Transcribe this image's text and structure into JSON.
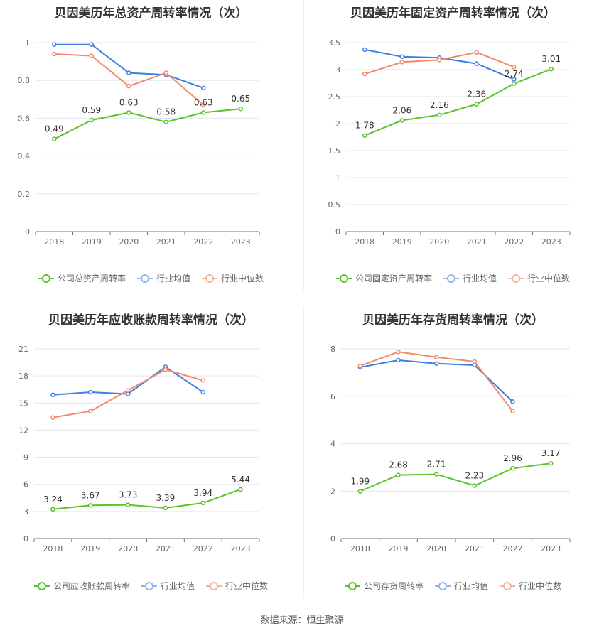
{
  "source": "数据来源：恒生聚源",
  "colors": {
    "company": "#5cc42a",
    "avg": "#3d7fe0",
    "median": "#f3896a"
  },
  "chart_data": [
    {
      "type": "line",
      "title": "贝因美历年总资产周转率情况（次）",
      "categories": [
        "2018",
        "2019",
        "2020",
        "2021",
        "2022",
        "2023"
      ],
      "ylim": [
        0,
        1
      ],
      "yticks": [
        0,
        0.2,
        0.4,
        0.6,
        0.8,
        1
      ],
      "ytick_labels": [
        "0",
        "0.2",
        "0.4",
        "0.6",
        "0.8",
        "1"
      ],
      "legend_position": "bottom",
      "series": [
        {
          "name": "公司总资产周转率",
          "values": [
            0.49,
            0.59,
            0.63,
            0.58,
            0.63,
            0.65
          ],
          "labels": [
            "0.49",
            "0.59",
            "0.63",
            "0.58",
            "0.63",
            "0.65"
          ]
        },
        {
          "name": "行业均值",
          "values": [
            0.99,
            0.99,
            0.84,
            0.83,
            0.76,
            null
          ]
        },
        {
          "name": "行业中位数",
          "values": [
            0.94,
            0.93,
            0.77,
            0.84,
            0.67,
            null
          ]
        }
      ]
    },
    {
      "type": "line",
      "title": "贝因美历年固定资产周转率情况（次）",
      "categories": [
        "2018",
        "2019",
        "2020",
        "2021",
        "2022",
        "2023"
      ],
      "ylim": [
        0,
        3.5
      ],
      "yticks": [
        0,
        0.5,
        1,
        1.5,
        2,
        2.5,
        3,
        3.5
      ],
      "ytick_labels": [
        "0",
        "0.5",
        "1",
        "1.5",
        "2",
        "2.5",
        "3",
        "3.5"
      ],
      "legend_position": "bottom",
      "series": [
        {
          "name": "公司固定资产周转率",
          "values": [
            1.78,
            2.06,
            2.16,
            2.36,
            2.74,
            3.01
          ],
          "labels": [
            "1.78",
            "2.06",
            "2.16",
            "2.36",
            "2.74",
            "3.01"
          ]
        },
        {
          "name": "行业均值",
          "values": [
            3.37,
            3.24,
            3.22,
            3.11,
            2.82,
            null
          ]
        },
        {
          "name": "行业中位数",
          "values": [
            2.92,
            3.14,
            3.18,
            3.32,
            3.05,
            null
          ]
        }
      ]
    },
    {
      "type": "line",
      "title": "贝因美历年应收账款周转率情况（次）",
      "categories": [
        "2018",
        "2019",
        "2020",
        "2021",
        "2022",
        "2023"
      ],
      "ylim": [
        0,
        21
      ],
      "yticks": [
        0,
        3,
        6,
        9,
        12,
        15,
        18,
        21
      ],
      "ytick_labels": [
        "0",
        "3",
        "6",
        "9",
        "12",
        "15",
        "18",
        "21"
      ],
      "legend_position": "bottom",
      "series": [
        {
          "name": "公司应收账款周转率",
          "values": [
            3.24,
            3.67,
            3.73,
            3.39,
            3.94,
            5.44
          ],
          "labels": [
            "3.24",
            "3.67",
            "3.73",
            "3.39",
            "3.94",
            "5.44"
          ]
        },
        {
          "name": "行业均值",
          "values": [
            15.9,
            16.2,
            16.0,
            19.0,
            16.2,
            null
          ]
        },
        {
          "name": "行业中位数",
          "values": [
            13.4,
            14.1,
            16.4,
            18.7,
            17.5,
            null
          ]
        }
      ]
    },
    {
      "type": "line",
      "title": "贝因美历年存货周转率情况（次）",
      "categories": [
        "2018",
        "2019",
        "2020",
        "2021",
        "2022",
        "2023"
      ],
      "ylim": [
        0,
        8
      ],
      "yticks": [
        0,
        2,
        4,
        6,
        8
      ],
      "ytick_labels": [
        "0",
        "2",
        "4",
        "6",
        "8"
      ],
      "legend_position": "bottom",
      "series": [
        {
          "name": "公司存货周转率",
          "values": [
            1.99,
            2.68,
            2.71,
            2.23,
            2.96,
            3.17
          ],
          "labels": [
            "1.99",
            "2.68",
            "2.71",
            "2.23",
            "2.96",
            "3.17"
          ]
        },
        {
          "name": "行业均值",
          "values": [
            7.22,
            7.52,
            7.38,
            7.31,
            5.77,
            null
          ]
        },
        {
          "name": "行业中位数",
          "values": [
            7.28,
            7.87,
            7.65,
            7.46,
            5.37,
            null
          ]
        }
      ]
    }
  ]
}
